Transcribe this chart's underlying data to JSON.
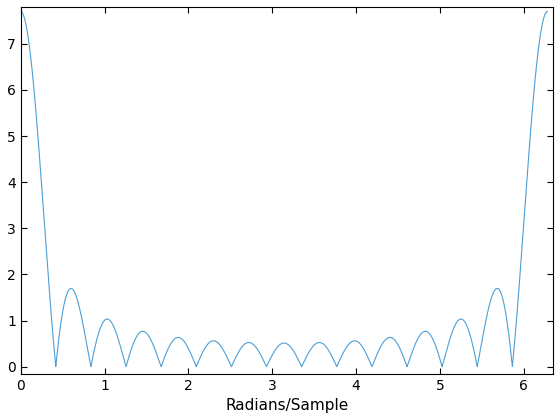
{
  "xlabel": "Radians/Sample",
  "line_color": "#4D9FD6",
  "xlim": [
    0,
    6.35
  ],
  "ylim": [
    -0.15,
    7.8
  ],
  "xticks": [
    0,
    1,
    2,
    3,
    4,
    5,
    6
  ],
  "yticks": [
    0,
    1,
    2,
    3,
    4,
    5,
    6,
    7
  ],
  "figsize": [
    5.6,
    4.2
  ],
  "dpi": 100,
  "linewidth": 0.8,
  "N_filter": 15,
  "peak": 7.7
}
